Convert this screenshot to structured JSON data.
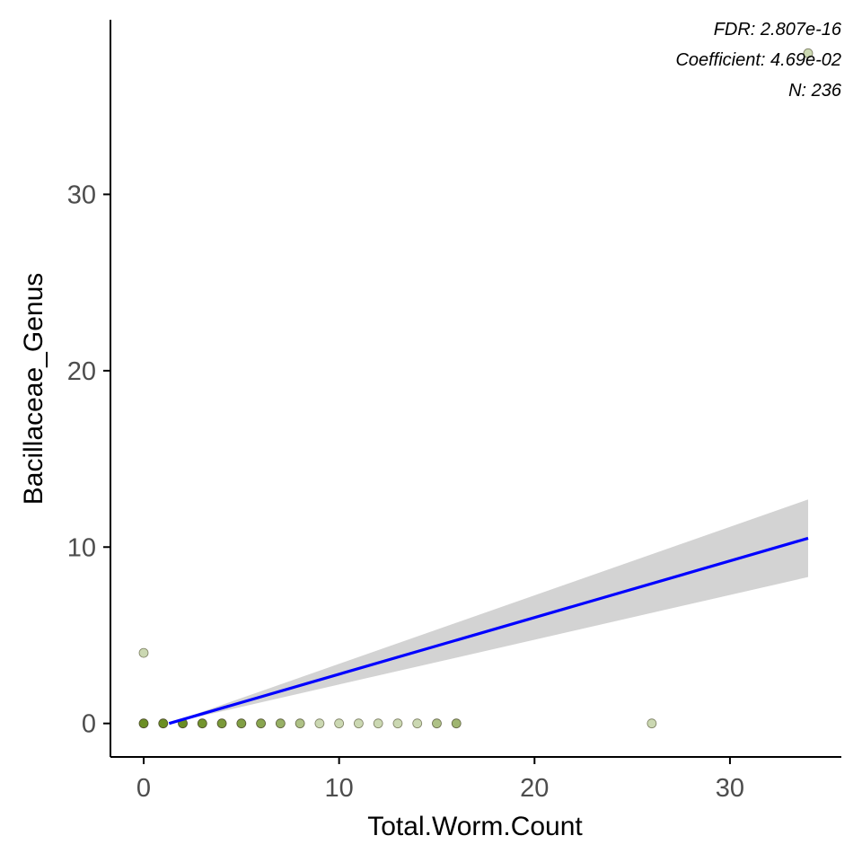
{
  "chart_data": {
    "type": "scatter",
    "xlabel": "Total.Worm.Count",
    "ylabel": "Bacillaceae_Genus",
    "xlim": [
      -1.7,
      35.7
    ],
    "ylim": [
      -1.9,
      39.9
    ],
    "x_ticks": [
      0,
      10,
      20,
      30
    ],
    "y_ticks": [
      0,
      10,
      20,
      30
    ],
    "grid": false,
    "annotations": [
      "FDR: 2.807e-16",
      "Coefficient: 4.69e-02",
      "N: 236"
    ],
    "points": {
      "x": [
        0,
        1,
        2,
        3,
        4,
        5,
        6,
        7,
        8,
        9,
        10,
        11,
        12,
        13,
        14,
        15,
        16,
        26,
        0,
        34
      ],
      "y": [
        0,
        0,
        0,
        0,
        0,
        0,
        0,
        0,
        0,
        0,
        0,
        0,
        0,
        0,
        0,
        0,
        0,
        0,
        4,
        38
      ],
      "density": [
        1.0,
        1.0,
        1.0,
        0.95,
        0.9,
        0.85,
        0.8,
        0.7,
        0.55,
        0.35,
        0.35,
        0.35,
        0.35,
        0.35,
        0.35,
        0.55,
        0.65,
        0.35,
        0.35,
        0.35
      ]
    },
    "fit_line": {
      "x": [
        1.3,
        34
      ],
      "y": [
        0.0,
        10.5
      ],
      "ci_lower": [
        0.0,
        8.3
      ],
      "ci_upper": [
        0.0,
        12.7
      ]
    },
    "colors": {
      "points_fill": "#6b8e23",
      "points_stroke": "#4a4a2a",
      "fit_line": "#0000ff",
      "ci_band": "#d3d3d3",
      "axis": "#000000",
      "tick_text": "#4d4d4d"
    }
  }
}
